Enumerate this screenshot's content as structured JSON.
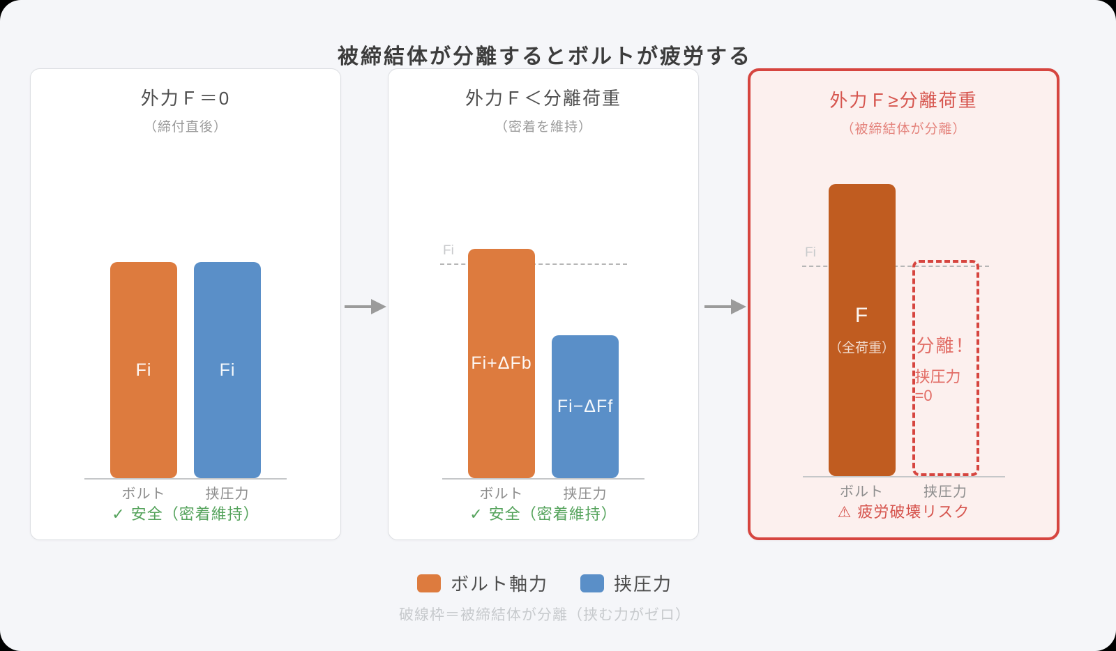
{
  "title": "被締結体が分離するとボルトが疲労する",
  "panels": [
    {
      "header": "外力Ｆ＝0",
      "subheader": "（締付直後）",
      "bar1_label": "Fi",
      "bar2_label": "Fi",
      "cat1": "ボルト",
      "cat2": "挟圧力",
      "footer_icon": "✓",
      "footer_text": "安全（密着維持）"
    },
    {
      "header": "外力Ｆ＜分離荷重",
      "subheader": "（密着を維持）",
      "ref_label": "Fi",
      "bar1_label": "Fi+ΔFb",
      "bar2_label": "Fi−ΔFf",
      "cat1": "ボルト",
      "cat2": "挟圧力",
      "footer_icon": "✓",
      "footer_text": "安全（密着維持）"
    },
    {
      "header": "外力Ｆ≥分離荷重",
      "subheader": "（被締結体が分離）",
      "ref_label": "Fi",
      "bar1_label": "F",
      "bar1_sublabel": "（全荷重）",
      "frame_line1": "分離！",
      "frame_line2": "挟圧力=0",
      "cat1": "ボルト",
      "cat2": "挟圧力",
      "footer_icon": "⚠",
      "footer_text": "疲労破壊リスク"
    }
  ],
  "legend": {
    "items": [
      {
        "label": "ボルト軸力",
        "color": "#dd7b3e"
      },
      {
        "label": "挟圧力",
        "color": "#5a8fc8"
      }
    ],
    "note": "破線枠＝被締結体が分離（挟む力がゼロ）"
  },
  "colors": {
    "background": "#f5f6f9",
    "panel_background": "#ffffff",
    "panel_border": "#dcdee2",
    "alert_panel_background": "#fcf0ee",
    "alert_red": "#d6453f",
    "bolt_orange": "#dd7b3e",
    "clamp_blue": "#5a8fc8",
    "overload_dark_orange": "#c05c20",
    "safe_green": "#55a35c",
    "arrow_gray": "#9b9b9b"
  },
  "chart_data": {
    "type": "bar",
    "note": "bar heights relative to initial bolt preload Fi = 1.0",
    "panels": [
      {
        "title": "外力Ｆ＝0",
        "categories": [
          "ボルト",
          "挟圧力"
        ],
        "values": [
          1.0,
          1.0
        ],
        "bar_labels": [
          "Fi",
          "Fi"
        ]
      },
      {
        "title": "外力Ｆ＜分離荷重",
        "categories": [
          "ボルト",
          "挟圧力"
        ],
        "values": [
          1.06,
          0.66
        ],
        "bar_labels": [
          "Fi+ΔFb",
          "Fi−ΔFf"
        ],
        "reference_line": {
          "label": "Fi",
          "value": 1.0
        }
      },
      {
        "title": "外力Ｆ≥分離荷重",
        "categories": [
          "ボルト",
          "挟圧力"
        ],
        "values": [
          1.35,
          0
        ],
        "bar_labels": [
          "F（全荷重）",
          "分離！挟圧力=0"
        ],
        "reference_line": {
          "label": "Fi",
          "value": 1.0
        }
      }
    ]
  }
}
